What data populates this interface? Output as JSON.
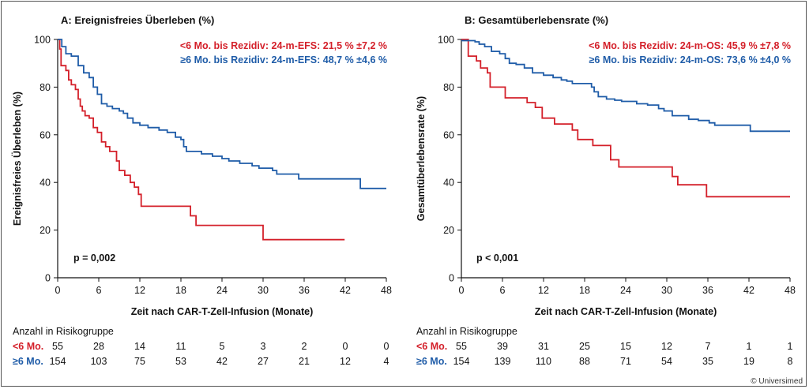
{
  "copyright": "© Universimed",
  "colors": {
    "red": "#d4202a",
    "blue": "#1f5ca8",
    "axis": "#111111"
  },
  "chart_data": [
    {
      "type": "line",
      "subtype": "kaplan-meier",
      "title": "A: Ereignisfreies Überleben (%)",
      "xlabel": "Zeit nach CAR-T-Zell-Infusion (Monate)",
      "ylabel": "Ereignisfreies Überleben (%)",
      "xlim": [
        0,
        48
      ],
      "ylim": [
        0,
        100
      ],
      "xticks": [
        0,
        6,
        12,
        18,
        24,
        30,
        36,
        42,
        48
      ],
      "yticks": [
        0,
        20,
        40,
        60,
        80,
        100
      ],
      "grid": false,
      "pvalue": "p = 0,002",
      "legend": [
        {
          "group": "<6 Mo.",
          "prefix": "<6 Mo. bis Rezidiv: 24-m-EFS: 21,5 %  ±7,2 %"
        },
        {
          "group": "≥6 Mo.",
          "prefix": "≥6 Mo. bis Rezidiv: 24-m-EFS: 48,7 %  ±4,6 %"
        }
      ],
      "series": [
        {
          "name": "<6 Mo. bis Rezidiv",
          "color": "red",
          "points": [
            [
              0,
              100
            ],
            [
              0.3,
              96
            ],
            [
              0.5,
              89
            ],
            [
              1.2,
              87
            ],
            [
              1.6,
              83
            ],
            [
              2,
              81
            ],
            [
              2.6,
              79
            ],
            [
              3,
              75
            ],
            [
              3.3,
              72
            ],
            [
              3.6,
              70
            ],
            [
              4,
              68
            ],
            [
              4.6,
              67
            ],
            [
              5.2,
              63
            ],
            [
              5.8,
              61
            ],
            [
              6.4,
              57
            ],
            [
              7,
              55
            ],
            [
              7.6,
              53
            ],
            [
              8.6,
              49
            ],
            [
              9,
              45
            ],
            [
              9.8,
              43
            ],
            [
              10.6,
              40
            ],
            [
              11.2,
              38
            ],
            [
              11.8,
              35
            ],
            [
              12.2,
              30
            ],
            [
              18.9,
              30
            ],
            [
              19.4,
              26
            ],
            [
              20.2,
              22
            ],
            [
              29.8,
              22
            ],
            [
              30,
              16
            ],
            [
              41.8,
              16.3
            ]
          ]
        },
        {
          "name": "≥6 Mo. bis Rezidiv",
          "color": "blue",
          "points": [
            [
              0,
              100
            ],
            [
              0.6,
              97
            ],
            [
              1.2,
              94
            ],
            [
              2,
              93
            ],
            [
              3,
              89
            ],
            [
              3.8,
              86
            ],
            [
              4.6,
              84
            ],
            [
              5.2,
              80
            ],
            [
              5.8,
              77
            ],
            [
              6.4,
              73
            ],
            [
              7.2,
              72
            ],
            [
              8,
              71
            ],
            [
              9,
              70
            ],
            [
              9.6,
              69
            ],
            [
              10.2,
              67
            ],
            [
              11,
              65
            ],
            [
              12,
              64
            ],
            [
              13.2,
              63
            ],
            [
              14.8,
              62
            ],
            [
              16,
              61
            ],
            [
              17.2,
              59
            ],
            [
              18,
              58
            ],
            [
              18.4,
              55
            ],
            [
              18.8,
              53
            ],
            [
              21,
              52
            ],
            [
              22.6,
              51
            ],
            [
              24,
              50
            ],
            [
              25,
              49
            ],
            [
              26.6,
              48
            ],
            [
              28.4,
              47
            ],
            [
              29.4,
              46
            ],
            [
              31.4,
              45
            ],
            [
              32,
              43.5
            ],
            [
              34.8,
              43.5
            ],
            [
              35.2,
              41.5
            ],
            [
              44,
              41.5
            ],
            [
              44.2,
              37.5
            ],
            [
              48,
              37.5
            ]
          ]
        }
      ],
      "risk_table": {
        "title": "Anzahl in Risikogruppe",
        "times": [
          0,
          6,
          12,
          18,
          24,
          30,
          36,
          42,
          48
        ],
        "rows": [
          {
            "label": "<6 Mo.",
            "color": "red",
            "values": [
              "55",
              "28",
              "14",
              "11",
              "5",
              "3",
              "2",
              "0",
              "0"
            ]
          },
          {
            "label": "≥6 Mo.",
            "color": "blue",
            "values": [
              "154",
              "103",
              "75",
              "53",
              "42",
              "27",
              "21",
              "12",
              "4"
            ]
          }
        ]
      }
    },
    {
      "type": "line",
      "subtype": "kaplan-meier",
      "title": "B: Gesamtüberlebensrate (%)",
      "xlabel": "Zeit nach CAR-T-Zell-Infusion (Monate)",
      "ylabel": "Gesamtüberlebensrate (%)",
      "xlim": [
        0,
        48
      ],
      "ylim": [
        0,
        100
      ],
      "xticks": [
        0,
        6,
        12,
        18,
        24,
        30,
        36,
        42,
        48
      ],
      "yticks": [
        0,
        20,
        40,
        60,
        80,
        100
      ],
      "grid": false,
      "pvalue": "p < 0,001",
      "legend": [
        {
          "group": "<6 Mo.",
          "prefix": "<6 Mo. bis Rezidiv: 24-m-OS: 45,9 %  ±7,8 %"
        },
        {
          "group": "≥6 Mo.",
          "prefix": "≥6 Mo. bis Rezidiv: 24-m-OS: 73,6 %  ±4,0 %"
        }
      ],
      "series": [
        {
          "name": "<6 Mo. bis Rezidiv",
          "color": "red",
          "points": [
            [
              0,
              100
            ],
            [
              1,
              93
            ],
            [
              2.2,
              91
            ],
            [
              2.8,
              88
            ],
            [
              3.8,
              86
            ],
            [
              4.2,
              80
            ],
            [
              6.4,
              75.5
            ],
            [
              9.6,
              73.5
            ],
            [
              10.8,
              71.5
            ],
            [
              11.8,
              67
            ],
            [
              13.6,
              64.5
            ],
            [
              16.2,
              62
            ],
            [
              17,
              58
            ],
            [
              19.2,
              55.5
            ],
            [
              21.8,
              49.5
            ],
            [
              23,
              46.5
            ],
            [
              30.6,
              46.5
            ],
            [
              30.8,
              42.5
            ],
            [
              31.6,
              39
            ],
            [
              35.6,
              39
            ],
            [
              35.8,
              34
            ],
            [
              48,
              34
            ]
          ]
        },
        {
          "name": "≥6 Mo. bis Rezidiv",
          "color": "blue",
          "points": [
            [
              0,
              99.5
            ],
            [
              2,
              99
            ],
            [
              2.6,
              98
            ],
            [
              3.4,
              97
            ],
            [
              4.4,
              95
            ],
            [
              5.6,
              94
            ],
            [
              6.4,
              92
            ],
            [
              7,
              90
            ],
            [
              8,
              89.5
            ],
            [
              9.2,
              88
            ],
            [
              10.4,
              86
            ],
            [
              12,
              85
            ],
            [
              13.4,
              84
            ],
            [
              14.6,
              83
            ],
            [
              15.4,
              82.5
            ],
            [
              16.2,
              81.5
            ],
            [
              19,
              80
            ],
            [
              19.4,
              78
            ],
            [
              20,
              76
            ],
            [
              21.2,
              75
            ],
            [
              22.4,
              74.5
            ],
            [
              23.4,
              74
            ],
            [
              25.6,
              73
            ],
            [
              27.2,
              72.5
            ],
            [
              28.8,
              71
            ],
            [
              29.6,
              70
            ],
            [
              30.8,
              68
            ],
            [
              33.2,
              66.5
            ],
            [
              34.6,
              66
            ],
            [
              36.2,
              65
            ],
            [
              37,
              64
            ],
            [
              42.2,
              61.5
            ],
            [
              48,
              61.5
            ]
          ]
        }
      ],
      "risk_table": {
        "title": "Anzahl in Risikogruppe",
        "times": [
          0,
          6,
          12,
          18,
          24,
          30,
          36,
          42,
          48
        ],
        "rows": [
          {
            "label": "<6 Mo.",
            "color": "red",
            "values": [
              "55",
              "39",
              "31",
              "25",
              "15",
              "12",
              "7",
              "1",
              "1"
            ]
          },
          {
            "label": "≥6 Mo.",
            "color": "blue",
            "values": [
              "154",
              "139",
              "110",
              "88",
              "71",
              "54",
              "35",
              "19",
              "8"
            ]
          }
        ]
      }
    }
  ]
}
